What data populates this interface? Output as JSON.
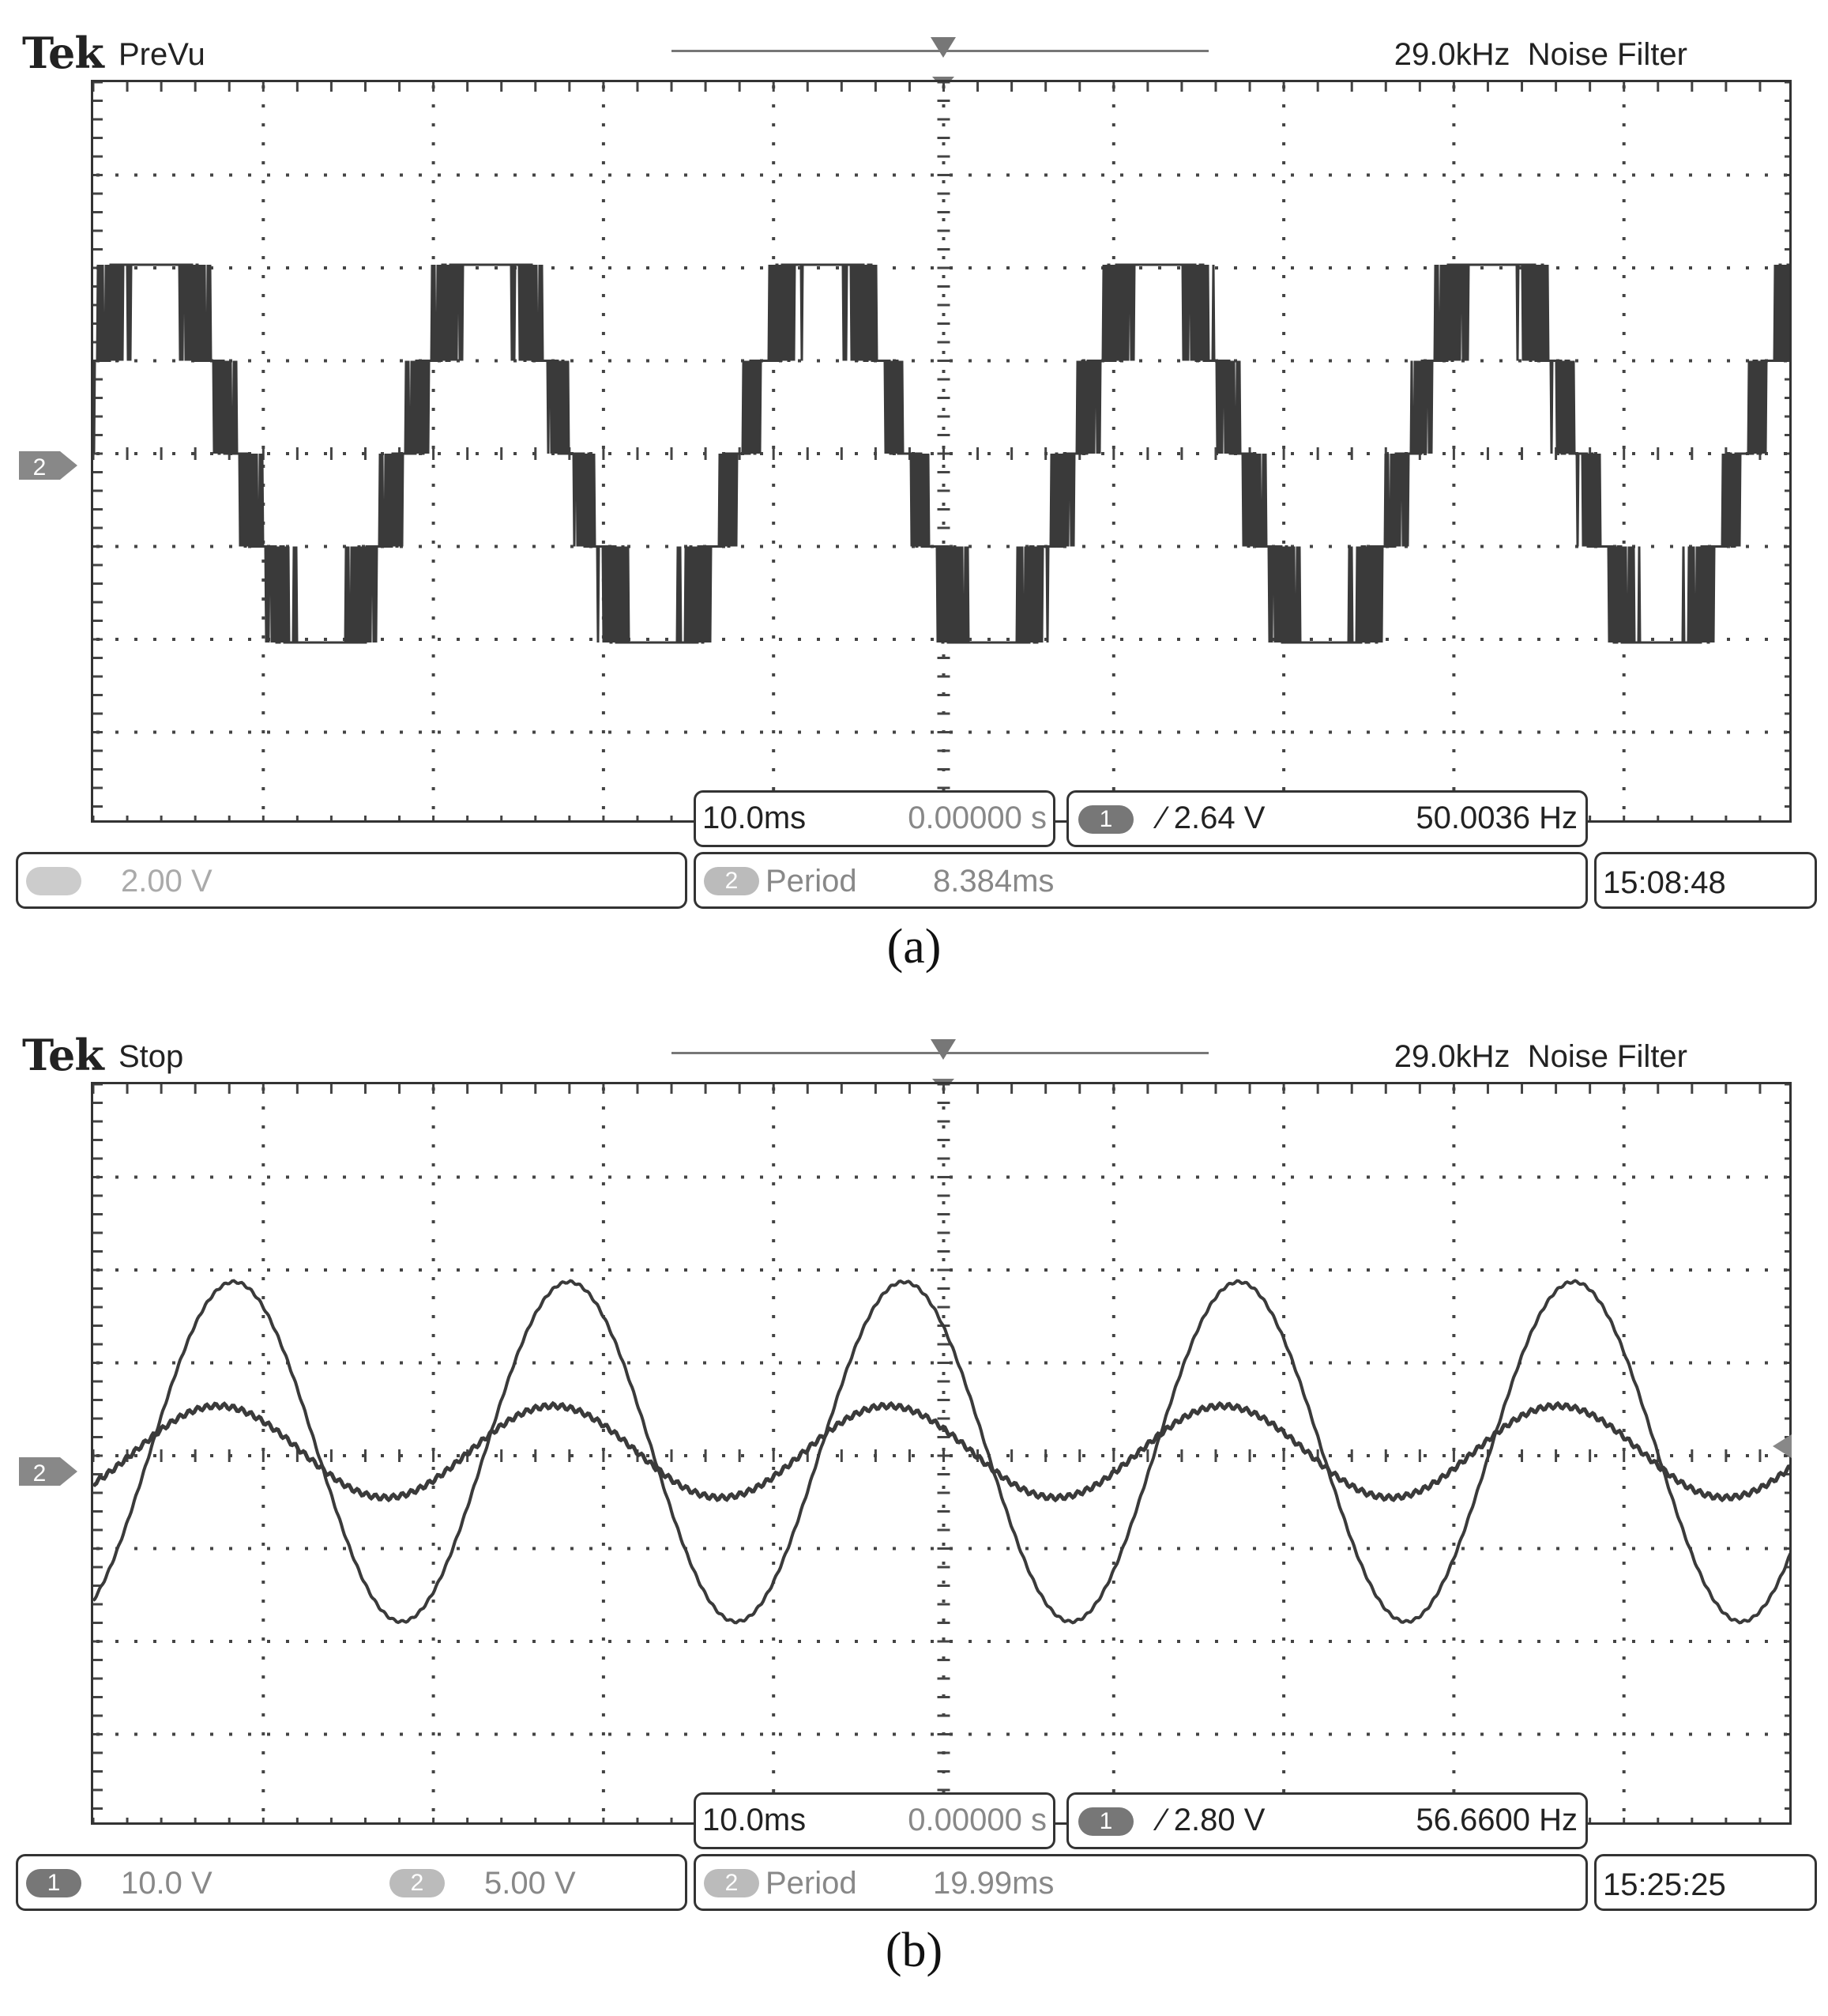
{
  "panels": [
    {
      "brand": "Tek",
      "mode": "PreVu",
      "bandwidth": "29.0kHz",
      "filter": "Noise Filter",
      "channel_marker": "2",
      "timebase": "10.0ms",
      "trigger_position": "0.00000 s",
      "trigger_channel": "1",
      "trigger_level": "∕ 2.64 V",
      "frequency": "50.0036 Hz",
      "ch1_scale": "",
      "ch2_scale": "2.00 V",
      "measure_channel": "2",
      "measure_label": "Period",
      "measure_value": "8.384ms",
      "clock": "15:08:48",
      "caption": "(a)",
      "waveform_type": "multilevel stepped (PWM)"
    },
    {
      "brand": "Tek",
      "mode": "Stop",
      "bandwidth": "29.0kHz",
      "filter": "Noise Filter",
      "channel_marker": "2",
      "timebase": "10.0ms",
      "trigger_position": "0.00000 s",
      "trigger_channel": "1",
      "trigger_level": "∕ 2.80 V",
      "frequency": "56.6600 Hz",
      "ch1_scale": "10.0 V",
      "ch2_scale": "5.00 V",
      "measure_channel": "2",
      "measure_label": "Period",
      "measure_value": "19.99ms",
      "clock": "15:25:25",
      "caption": "(b)",
      "waveform_type": "two sinusoids"
    }
  ],
  "colors": {
    "trace": "#333333",
    "grid_dot": "#555555",
    "pill": "#999999"
  }
}
